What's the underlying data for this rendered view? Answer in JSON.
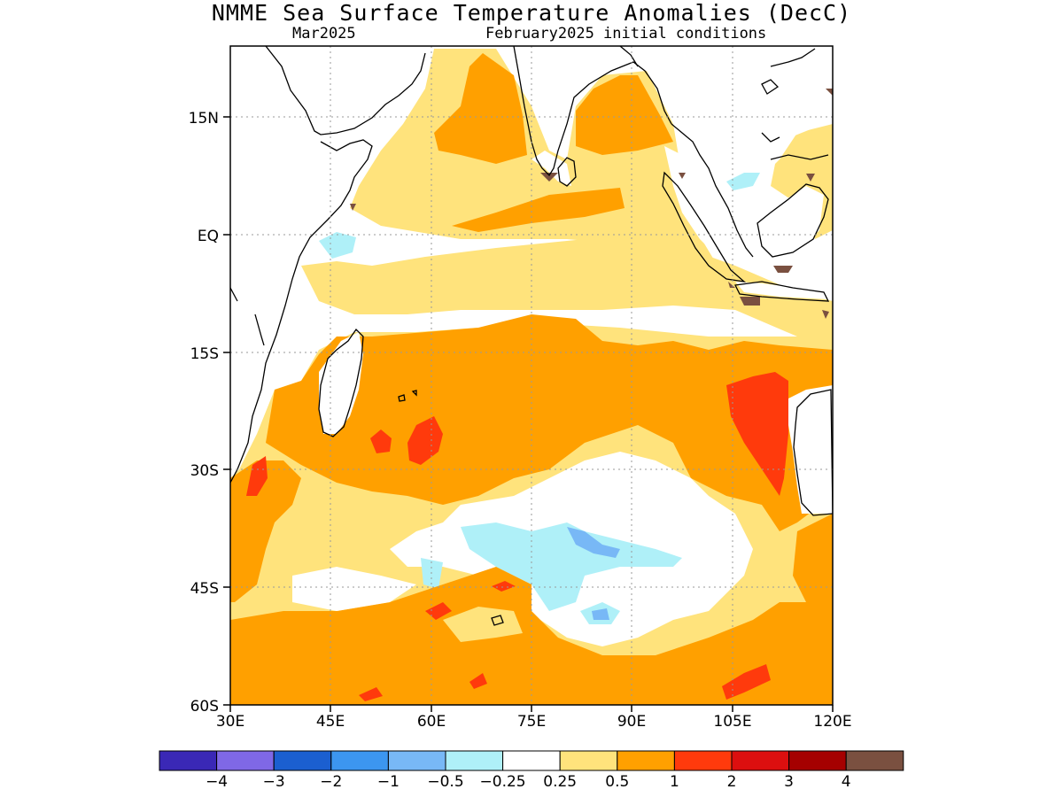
{
  "map": {
    "title": "NMME Sea Surface Temperature Anomalies (DecC)",
    "subtitle_left": "Mar2025",
    "subtitle_right": "February2025 initial conditions",
    "lon_ticks": [
      "30E",
      "45E",
      "60E",
      "75E",
      "90E",
      "105E",
      "120E"
    ],
    "lat_ticks": [
      "15N",
      "EQ",
      "15S",
      "30S",
      "45S",
      "60S"
    ]
  },
  "colorbar": {
    "colors": [
      "#3a28b6",
      "#7f68e6",
      "#1b5fd0",
      "#3c96f0",
      "#78b8f6",
      "#aff0f8",
      "#ffffff",
      "#ffe37c",
      "#ffa000",
      "#ff3a0c",
      "#dc0f0f",
      "#a50000",
      "#7a5040"
    ],
    "labels": [
      "−4",
      "−3",
      "−2",
      "−1",
      "−0.5",
      "−0.25",
      "0.25",
      "0.5",
      "1",
      "2",
      "3",
      "4"
    ]
  }
}
